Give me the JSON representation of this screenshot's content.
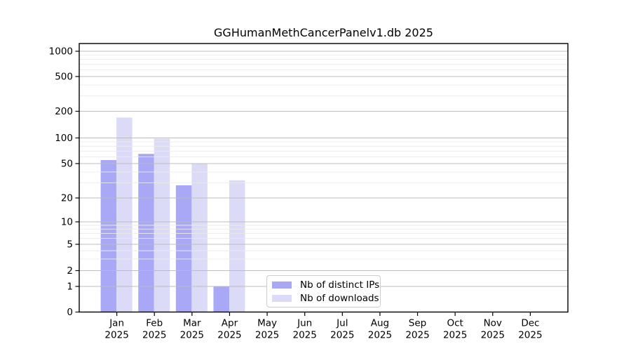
{
  "chart_data": {
    "type": "bar",
    "title": "GGHumanMethCancerPanelv1.db 2025",
    "categories": [
      "Jan",
      "Feb",
      "Mar",
      "Apr",
      "May",
      "Jun",
      "Jul",
      "Aug",
      "Sep",
      "Oct",
      "Nov",
      "Dec"
    ],
    "x_tick_second_line": "2025",
    "series": [
      {
        "name": "Nb of distinct IPs",
        "color": "#a8a8f6",
        "values": [
          55,
          65,
          28,
          1,
          0,
          0,
          0,
          0,
          0,
          0,
          0,
          0
        ]
      },
      {
        "name": "Nb of downloads",
        "color": "#dbdbf8",
        "values": [
          170,
          98,
          50,
          32,
          0,
          0,
          0,
          0,
          0,
          0,
          0,
          0
        ]
      }
    ],
    "y_ticks": [
      0,
      1,
      2,
      5,
      10,
      20,
      50,
      100,
      200,
      500,
      1000
    ],
    "ylim": [
      0,
      1200
    ],
    "scale": "symlog",
    "grid": true,
    "legend_position": "inside-bottom-center",
    "frame_color": "#000000",
    "background": "#ffffff",
    "grid_major_color": "#bcbcbc",
    "grid_minor_color": "#ebebeb"
  }
}
